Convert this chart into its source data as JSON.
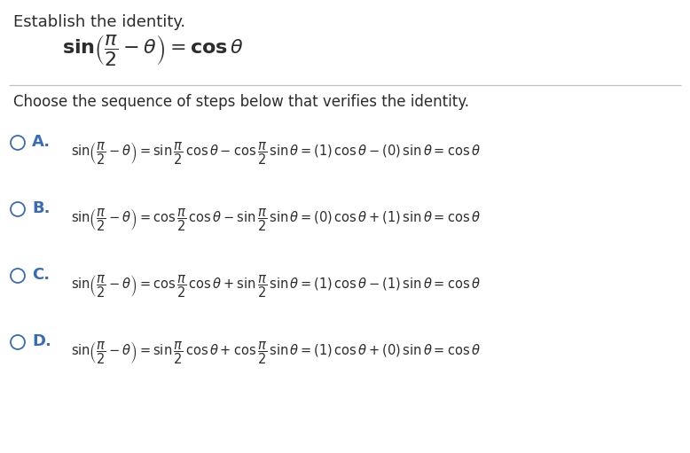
{
  "background_color": "#ffffff",
  "title_text": "Establish the identity.",
  "subtitle_text": "Choose the sequence of steps below that verifies the identity.",
  "label_color": "#3a6cb5",
  "text_color": "#2c2c2c",
  "line_color": "#c0c0c0",
  "options": [
    "A.",
    "B.",
    "C.",
    "D."
  ]
}
